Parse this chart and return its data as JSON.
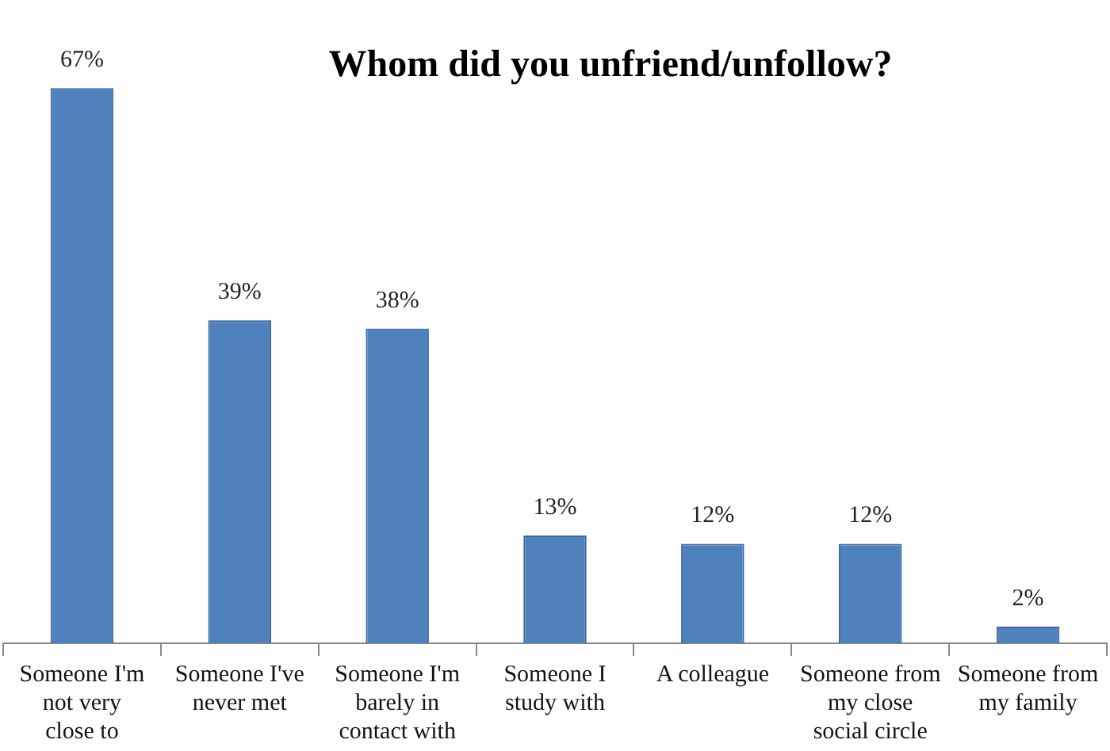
{
  "chart_data": {
    "type": "bar",
    "title": "Whom did you unfriend/unfollow?",
    "categories": [
      "Someone I'm not very close to",
      "Someone I've never met",
      "Someone I'm barely in contact with",
      "Someone I study with",
      "A colleague",
      "Someone from my close social circle",
      "Someone from my family"
    ],
    "values": [
      67,
      39,
      38,
      13,
      12,
      12,
      2
    ],
    "value_labels": [
      "67%",
      "39%",
      "38%",
      "13%",
      "12%",
      "12%",
      "2%"
    ],
    "color": "#4f81bd",
    "grid": false,
    "legend": false
  }
}
